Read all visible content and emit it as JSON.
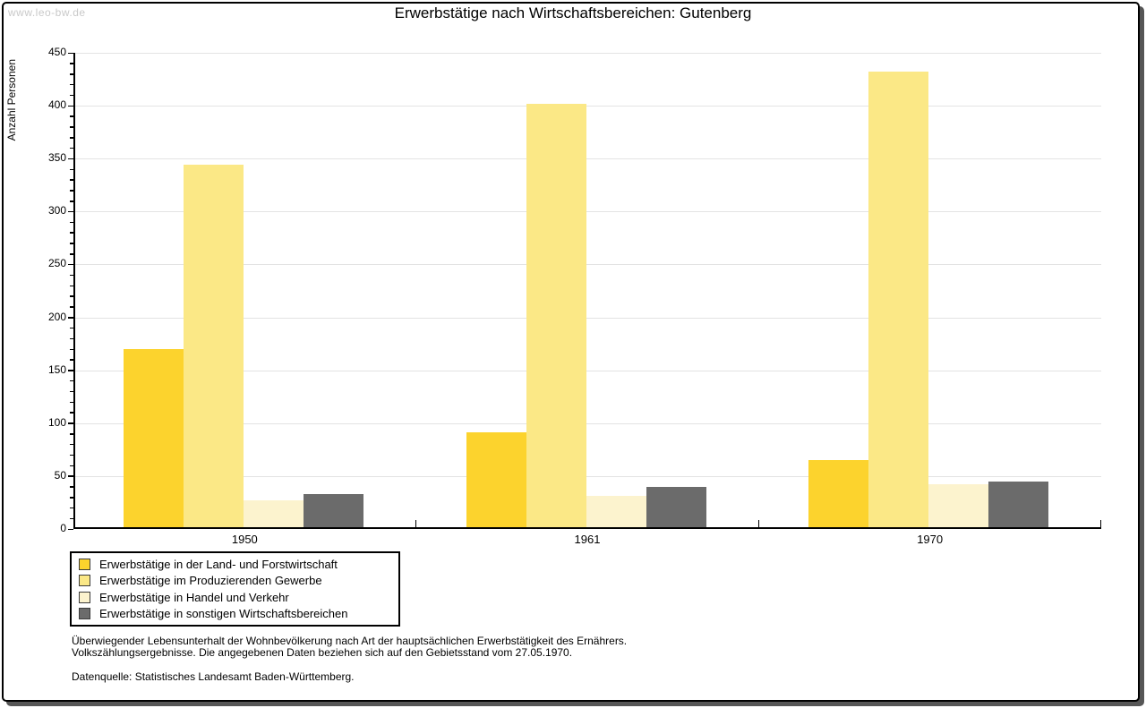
{
  "watermark": "www.leo-bw.de",
  "title": "Erwerbstätige nach Wirtschaftsbereichen: Gutenberg",
  "chart_data": {
    "type": "bar",
    "title": "Erwerbstätige nach Wirtschaftsbereichen: Gutenberg",
    "ylabel": "Anzahl Personen",
    "xlabel": "",
    "categories": [
      "1950",
      "1961",
      "1970"
    ],
    "series": [
      {
        "name": "Erwerbstätige in der Land- und Forstwirtschaft",
        "color": "#FCD32D",
        "values": [
          170,
          91,
          65
        ]
      },
      {
        "name": "Erwerbstätige im Produzierenden Gewerbe",
        "color": "#FBE886",
        "values": [
          344,
          402,
          432
        ]
      },
      {
        "name": "Erwerbstätige in Handel und Verkehr",
        "color": "#FCF3CE",
        "values": [
          27,
          31,
          42
        ]
      },
      {
        "name": "Erwerbstätige in sonstigen Wirtschaftsbereichen",
        "color": "#6B6B6B",
        "values": [
          33,
          40,
          45
        ]
      }
    ],
    "ylim": [
      0,
      450
    ],
    "ytick_interval": 50,
    "yminor_interval": 10,
    "grid": true,
    "gridline_color": "#E3E3E3",
    "legend_position": "bottom-left"
  },
  "footnotes": {
    "line1": "Überwiegender Lebensunterhalt der Wohnbevölkerung nach Art der hauptsächlichen Erwerbstätigkeit des Ernährers.",
    "line2": "Volkszählungsergebnisse. Die angegebenen Daten beziehen sich auf den Gebietsstand vom 27.05.1970.",
    "source": "Datenquelle: Statistisches Landesamt Baden-Württemberg."
  }
}
